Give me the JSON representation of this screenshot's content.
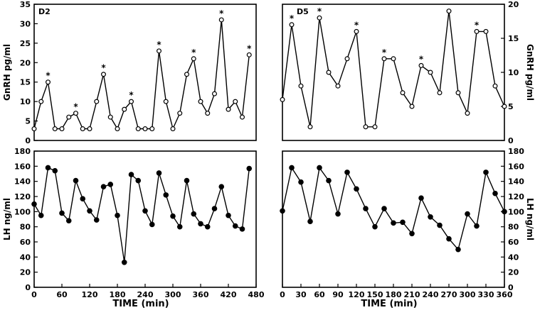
{
  "figure": {
    "x_title": "TIME (min)"
  },
  "chart_data": [
    {
      "type": "line",
      "id": "d2_gnrh",
      "panel_label": "D2",
      "ylabel": "GnRH pg/ml",
      "xlim": [
        0,
        480
      ],
      "ylim": [
        0,
        35
      ],
      "yticks": [
        0,
        5,
        10,
        15,
        20,
        25,
        30,
        35
      ],
      "xticks": [],
      "marker": "open",
      "x": [
        0,
        15,
        30,
        45,
        60,
        75,
        90,
        105,
        120,
        135,
        150,
        165,
        180,
        195,
        210,
        225,
        240,
        255,
        270,
        285,
        300,
        315,
        330,
        345,
        360,
        375,
        390,
        405,
        420,
        435,
        450,
        465
      ],
      "values": [
        3,
        10,
        15,
        3,
        3,
        6,
        7,
        3,
        3,
        10,
        17,
        6,
        3,
        8,
        10,
        3,
        3,
        3,
        23,
        10,
        3,
        7,
        17,
        21,
        10,
        7,
        12,
        31,
        8,
        10,
        6,
        22
      ],
      "pulse_x": [
        30,
        90,
        150,
        210,
        270,
        345,
        405,
        465
      ]
    },
    {
      "type": "line",
      "id": "d5_gnrh",
      "panel_label": "D5",
      "ylabel": "GnRH pg/ml",
      "xlim": [
        0,
        360
      ],
      "ylim": [
        0,
        20
      ],
      "yticks": [
        0,
        5,
        10,
        15,
        20
      ],
      "xticks": [],
      "marker": "open",
      "x": [
        0,
        15,
        30,
        45,
        60,
        75,
        90,
        105,
        120,
        135,
        150,
        165,
        180,
        195,
        210,
        225,
        240,
        255,
        270,
        285,
        300,
        315,
        330,
        345,
        360
      ],
      "values": [
        6,
        17,
        8,
        2,
        18,
        10,
        8,
        12,
        16,
        2,
        2,
        12,
        12,
        7,
        5,
        11,
        10,
        7,
        19,
        7,
        4,
        16,
        16,
        8,
        5
      ],
      "pulse_x": [
        15,
        60,
        120,
        165,
        225,
        315
      ]
    },
    {
      "type": "line",
      "id": "d2_lh",
      "ylabel": "LH ng/ml",
      "xlim": [
        0,
        480
      ],
      "ylim": [
        0,
        180
      ],
      "yticks": [
        0,
        20,
        40,
        60,
        80,
        100,
        120,
        140,
        160,
        180
      ],
      "xticks": [
        0,
        60,
        120,
        180,
        240,
        300,
        360,
        420,
        480
      ],
      "marker": "filled",
      "x": [
        0,
        15,
        30,
        45,
        60,
        75,
        90,
        105,
        120,
        135,
        150,
        165,
        180,
        195,
        210,
        225,
        240,
        255,
        270,
        285,
        300,
        315,
        330,
        345,
        360,
        375,
        390,
        405,
        420,
        435,
        450,
        465
      ],
      "values": [
        110,
        95,
        158,
        154,
        98,
        88,
        141,
        117,
        101,
        89,
        133,
        136,
        95,
        33,
        149,
        141,
        101,
        83,
        151,
        122,
        94,
        80,
        141,
        97,
        84,
        80,
        104,
        133,
        95,
        81,
        77,
        157
      ]
    },
    {
      "type": "line",
      "id": "d5_lh",
      "ylabel": "LH ng/ml",
      "xlim": [
        0,
        360
      ],
      "ylim": [
        0,
        180
      ],
      "yticks": [
        0,
        20,
        40,
        60,
        80,
        100,
        120,
        140,
        160,
        180
      ],
      "xticks": [
        0,
        30,
        60,
        90,
        120,
        150,
        180,
        210,
        240,
        270,
        300,
        330,
        360
      ],
      "marker": "filled",
      "x": [
        0,
        15,
        30,
        45,
        60,
        75,
        90,
        105,
        120,
        135,
        150,
        165,
        180,
        195,
        210,
        225,
        240,
        255,
        270,
        285,
        300,
        315,
        330,
        345,
        360
      ],
      "values": [
        101,
        158,
        139,
        87,
        158,
        141,
        97,
        152,
        130,
        104,
        80,
        104,
        85,
        86,
        71,
        118,
        93,
        82,
        64,
        50,
        97,
        81,
        152,
        124,
        100
      ]
    }
  ]
}
